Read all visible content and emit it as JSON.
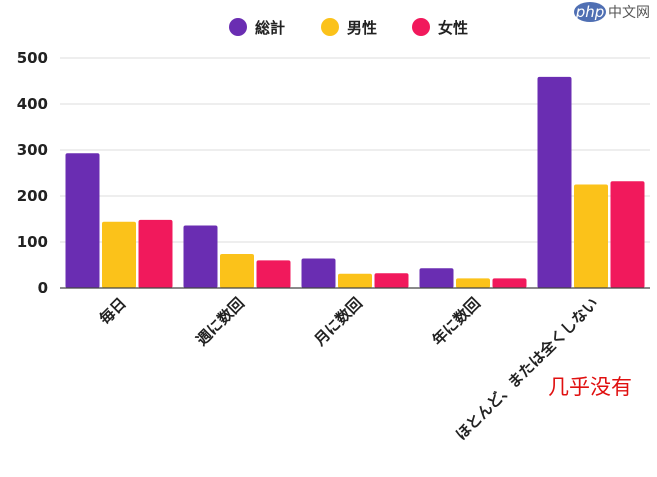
{
  "watermark": {
    "badge": "php",
    "text": "中文网"
  },
  "annotation": "几乎没有",
  "colors": {
    "総計": "#6a2db2",
    "男性": "#fbc21a",
    "女性": "#f1195c",
    "grid": "#dddddd",
    "axis": "#444444"
  },
  "chart_data": {
    "type": "bar",
    "title": "",
    "xlabel": "",
    "ylabel": "",
    "ylim": [
      0,
      500
    ],
    "yticks": [
      0,
      100,
      200,
      300,
      400,
      500
    ],
    "grid": true,
    "legend_position": "top-center",
    "categories": [
      "毎日",
      "週に数回",
      "月に数回",
      "年に数回",
      "ほとんど、または全くしない"
    ],
    "series": [
      {
        "name": "総計",
        "color": "#6a2db2",
        "values": [
          293,
          136,
          64,
          43,
          459
        ]
      },
      {
        "name": "男性",
        "color": "#fbc21a",
        "values": [
          144,
          74,
          31,
          21,
          225
        ]
      },
      {
        "name": "女性",
        "color": "#f1195c",
        "values": [
          148,
          60,
          32,
          21,
          232
        ]
      }
    ]
  }
}
